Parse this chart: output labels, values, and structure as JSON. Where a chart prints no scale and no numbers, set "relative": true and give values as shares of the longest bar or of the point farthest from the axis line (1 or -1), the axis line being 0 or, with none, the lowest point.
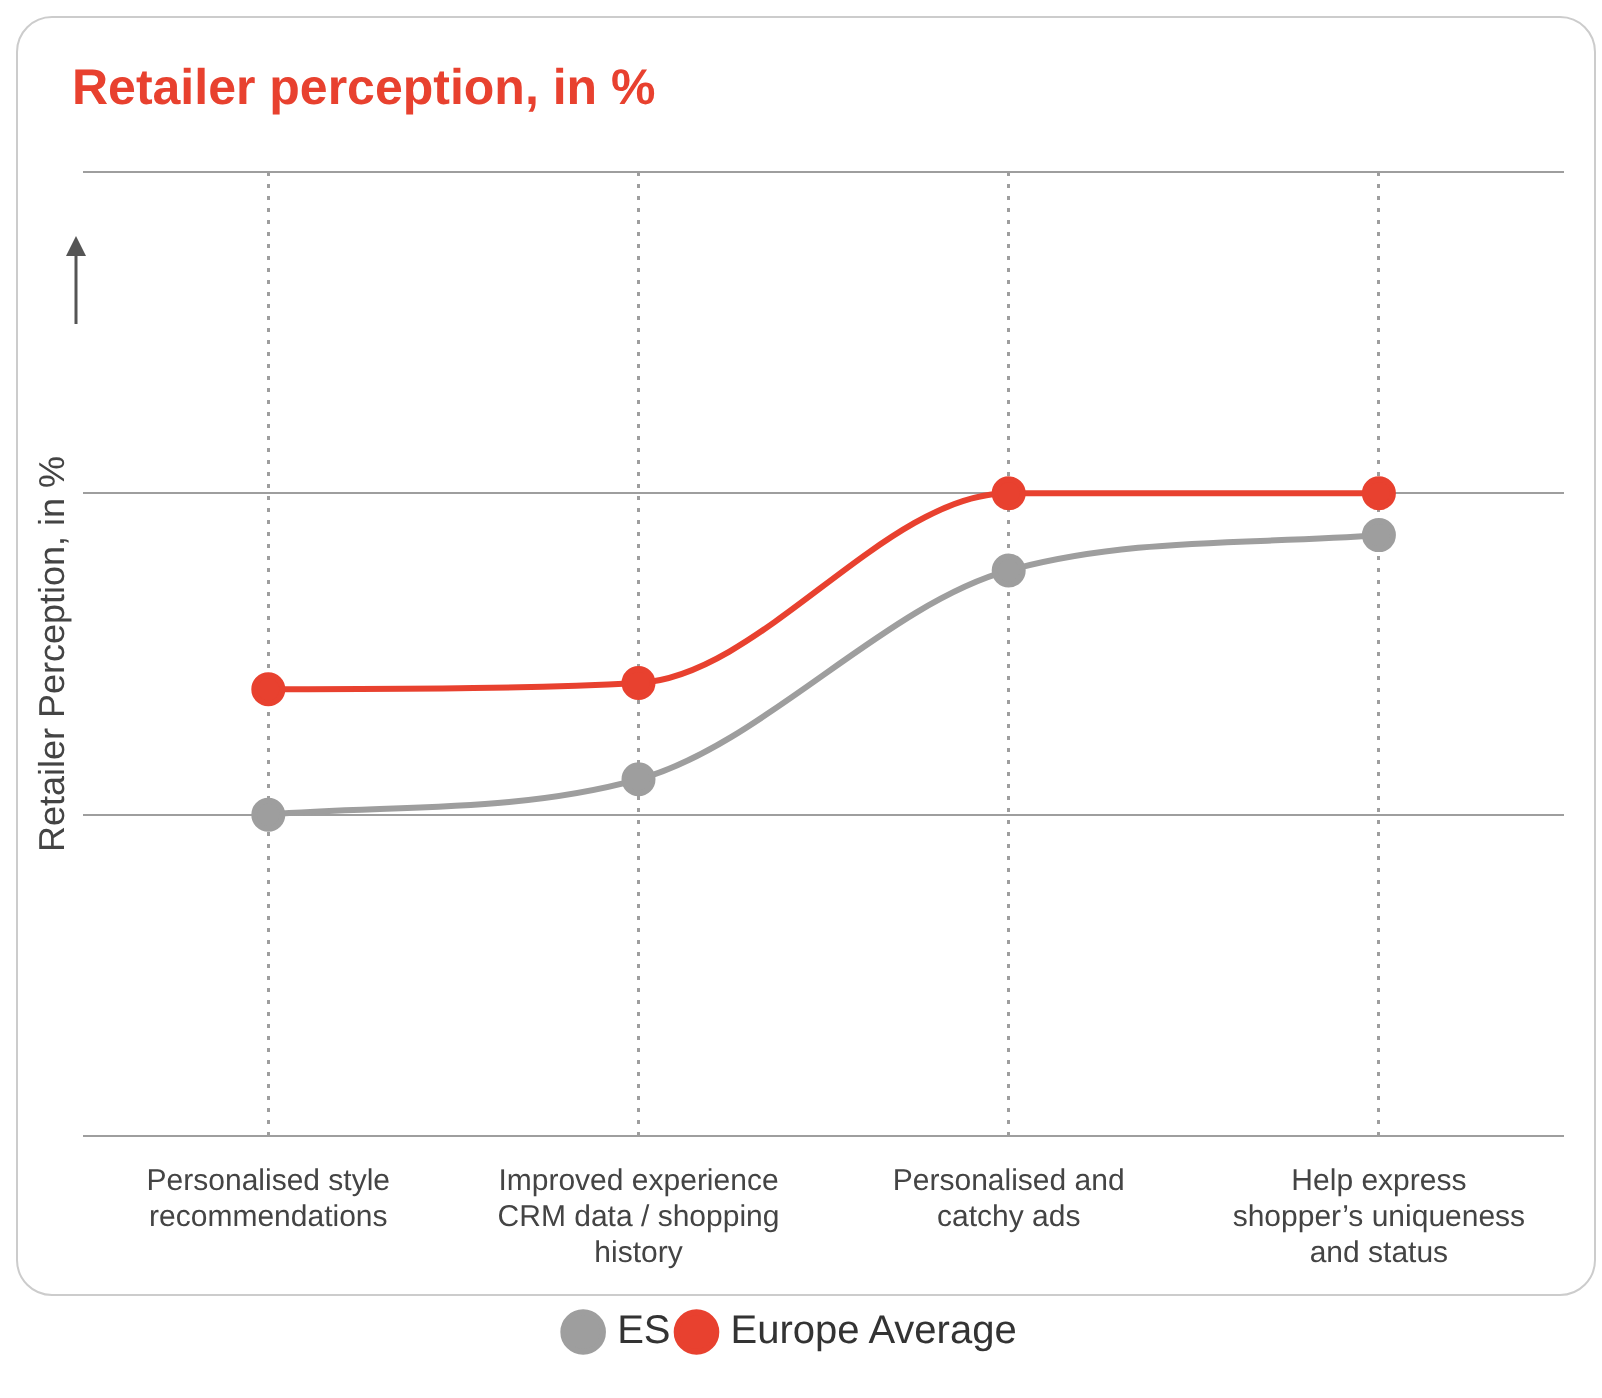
{
  "chart_data": {
    "type": "line",
    "title": "Retailer perception, in %",
    "ylabel": "Retailer Perception, in %",
    "categories": [
      "Personalised style recommendations",
      "Improved experience CRM data / shopping history",
      "Personalised and catchy ads",
      "Help express shopper’s uniqueness and status"
    ],
    "relative": true,
    "series": [
      {
        "name": "ES",
        "color": "#9e9e9e",
        "values": [
          0,
          0.11,
          0.76,
          0.87
        ]
      },
      {
        "name": "Europe Average",
        "color": "#e8412f",
        "values": [
          0.39,
          0.41,
          1,
          1
        ]
      }
    ],
    "grid": true,
    "legend": "bottom",
    "marker": "circle",
    "line_style": "solid"
  }
}
